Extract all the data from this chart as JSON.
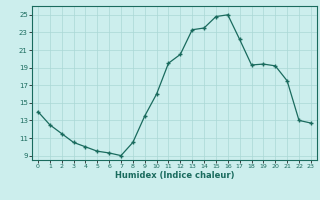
{
  "x": [
    0,
    1,
    2,
    3,
    4,
    5,
    6,
    7,
    8,
    9,
    10,
    11,
    12,
    13,
    14,
    15,
    16,
    17,
    18,
    19,
    20,
    21,
    22,
    23
  ],
  "y": [
    14.0,
    12.5,
    11.5,
    10.5,
    10.0,
    9.5,
    9.3,
    9.0,
    10.5,
    13.5,
    16.0,
    19.5,
    20.5,
    23.3,
    23.5,
    24.8,
    25.0,
    22.2,
    19.3,
    19.4,
    19.2,
    17.5,
    13.0,
    12.7
  ],
  "line_color": "#1a6b5e",
  "bg_color": "#cceeed",
  "grid_color": "#aad8d5",
  "xlabel": "Humidex (Indice chaleur)",
  "ylim": [
    8.5,
    26.0
  ],
  "xlim": [
    -0.5,
    23.5
  ],
  "yticks": [
    9,
    11,
    13,
    15,
    17,
    19,
    21,
    23,
    25
  ],
  "xticks": [
    0,
    1,
    2,
    3,
    4,
    5,
    6,
    7,
    8,
    9,
    10,
    11,
    12,
    13,
    14,
    15,
    16,
    17,
    18,
    19,
    20,
    21,
    22,
    23
  ]
}
